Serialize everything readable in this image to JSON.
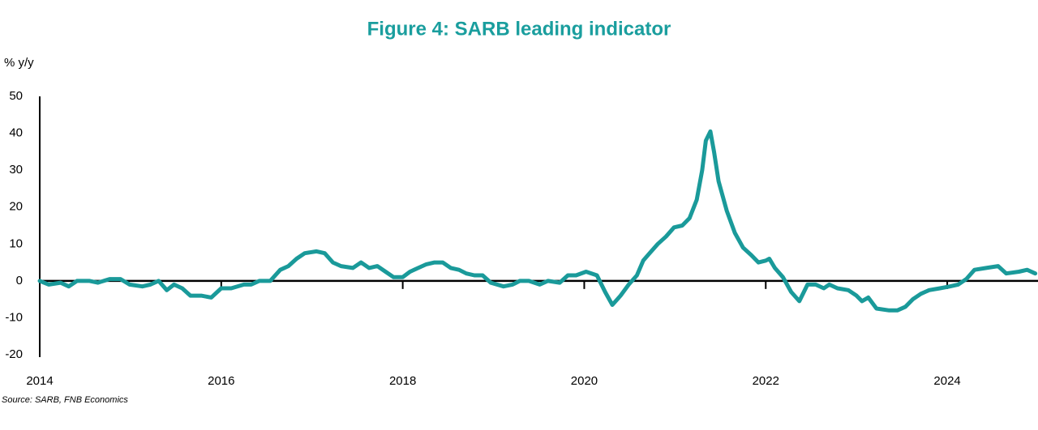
{
  "chart_data": {
    "type": "line",
    "title": "Figure 4: SARB leading indicator",
    "y_label": "% y/y",
    "source": "Source: SARB, FNB Economics",
    "xlim": [
      2014,
      2025
    ],
    "xticks": [
      2014,
      2016,
      2018,
      2020,
      2022,
      2024
    ],
    "ylim": [
      -20,
      50
    ],
    "yticks": [
      -20,
      -10,
      0,
      10,
      20,
      30,
      40,
      50
    ],
    "series": [
      {
        "name": "SARB leading indicator",
        "color": "#1a9a9a",
        "x": [
          2014.0,
          2014.1,
          2014.23,
          2014.32,
          2014.41,
          2014.55,
          2014.64,
          2014.77,
          2014.89,
          2014.99,
          2015.13,
          2015.22,
          2015.31,
          2015.4,
          2015.48,
          2015.57,
          2015.66,
          2015.78,
          2015.89,
          2016.0,
          2016.11,
          2016.25,
          2016.33,
          2016.42,
          2016.54,
          2016.65,
          2016.74,
          2016.83,
          2016.92,
          2017.05,
          2017.14,
          2017.23,
          2017.32,
          2017.45,
          2017.54,
          2017.63,
          2017.72,
          2017.81,
          2017.9,
          2018.0,
          2018.08,
          2018.17,
          2018.26,
          2018.35,
          2018.44,
          2018.53,
          2018.62,
          2018.7,
          2018.79,
          2018.88,
          2018.97,
          2019.11,
          2019.21,
          2019.29,
          2019.39,
          2019.51,
          2019.6,
          2019.73,
          2019.82,
          2019.91,
          2020.02,
          2020.14,
          2020.23,
          2020.31,
          2020.4,
          2020.49,
          2020.58,
          2020.65,
          2020.72,
          2020.81,
          2020.9,
          2020.99,
          2021.08,
          2021.16,
          2021.24,
          2021.3,
          2021.34,
          2021.39,
          2021.43,
          2021.48,
          2021.57,
          2021.66,
          2021.75,
          2021.84,
          2021.92,
          2022.0,
          2022.04,
          2022.1,
          2022.19,
          2022.28,
          2022.37,
          2022.46,
          2022.55,
          2022.64,
          2022.7,
          2022.79,
          2022.91,
          2023.0,
          2023.06,
          2023.13,
          2023.22,
          2023.36,
          2023.45,
          2023.54,
          2023.62,
          2023.71,
          2023.8,
          2023.92,
          2024.03,
          2024.12,
          2024.21,
          2024.3,
          2024.43,
          2024.56,
          2024.65,
          2024.79,
          2024.88,
          2024.97
        ],
        "values": [
          0,
          -1,
          -0.5,
          -1.5,
          0,
          0,
          -0.5,
          0.5,
          0.5,
          -1,
          -1.5,
          -1,
          0,
          -2.5,
          -1,
          -2,
          -4,
          -4,
          -4.5,
          -2,
          -2,
          -1,
          -1,
          0,
          0,
          3,
          4,
          6,
          7.5,
          8,
          7.5,
          5,
          4,
          3.5,
          5,
          3.5,
          4,
          2.5,
          1,
          1,
          2.5,
          3.5,
          4.5,
          5,
          5,
          3.5,
          3,
          2,
          1.5,
          1.5,
          -0.5,
          -1.5,
          -1,
          0,
          0,
          -1,
          0,
          -0.5,
          1.5,
          1.5,
          2.5,
          1.5,
          -3,
          -6.5,
          -4,
          -1,
          1.5,
          5.5,
          7.5,
          10,
          12,
          14.5,
          15,
          17,
          22,
          30,
          38,
          40.5,
          35,
          27,
          19,
          13,
          9,
          7,
          5,
          5.5,
          6,
          3.5,
          1,
          -3,
          -5.5,
          -1,
          -1,
          -2,
          -1,
          -2,
          -2.5,
          -4,
          -5.5,
          -4.5,
          -7.5,
          -8,
          -8,
          -7,
          -5,
          -3.5,
          -2.5,
          -2,
          -1.5,
          -1,
          0.5,
          3,
          3.5,
          4,
          2,
          2.5,
          3,
          2
        ]
      }
    ]
  }
}
